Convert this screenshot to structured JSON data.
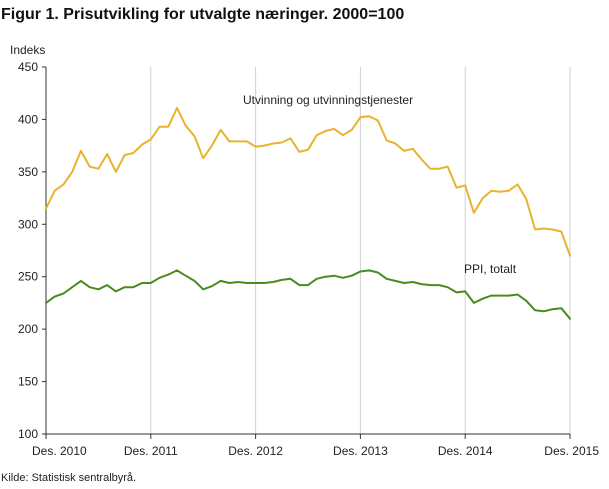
{
  "figure": {
    "title": "Figur 1. Prisutvikling for utvalgte næringer. 2000=100",
    "source": "Kilde: Statistisk sentralbyrå."
  },
  "chart_data": {
    "type": "line",
    "title": "Figur 1. Prisutvikling for utvalgte næringer. 2000=100",
    "ylabel": "Indeks",
    "xlabel": "",
    "ylim": [
      100,
      450
    ],
    "yticks": [
      100,
      150,
      200,
      250,
      300,
      350,
      400,
      450
    ],
    "xticks": [
      "Des. 2010",
      "Des. 2011",
      "Des. 2012",
      "Des. 2013",
      "Des. 2014",
      "Des. 2015"
    ],
    "x_start": "Des. 2010",
    "x_end": "Des. 2015",
    "grid": "vertical",
    "series": [
      {
        "name": "Utvinning og utvinningstjenester",
        "color": "#e8b32e",
        "values": [
          315,
          332,
          338,
          350,
          370,
          355,
          353,
          367,
          350,
          366,
          368,
          376,
          381,
          393,
          393,
          411,
          394,
          384,
          363,
          375,
          390,
          379,
          379,
          379,
          374,
          375,
          377,
          378,
          382,
          369,
          371,
          385,
          389,
          391,
          385,
          390,
          402,
          403,
          399,
          380,
          377,
          370,
          372,
          362,
          353,
          353,
          355,
          335,
          337,
          311,
          325,
          332,
          331,
          332,
          338,
          324,
          295,
          296,
          295,
          293,
          270
        ]
      },
      {
        "name": "PPI, totalt",
        "color": "#4a8a1e",
        "values": [
          225,
          231,
          234,
          240,
          246,
          240,
          238,
          242,
          236,
          240,
          240,
          244,
          244,
          249,
          252,
          256,
          251,
          246,
          238,
          241,
          246,
          244,
          245,
          244,
          244,
          244,
          245,
          247,
          248,
          242,
          242,
          248,
          250,
          251,
          249,
          251,
          255,
          256,
          254,
          248,
          246,
          244,
          245,
          243,
          242,
          242,
          240,
          235,
          236,
          225,
          229,
          232,
          232,
          232,
          233,
          227,
          218,
          217,
          219,
          220,
          210
        ]
      }
    ],
    "annotations": [
      "Utvinning og utvinningstjenester",
      "PPI, totalt"
    ]
  }
}
